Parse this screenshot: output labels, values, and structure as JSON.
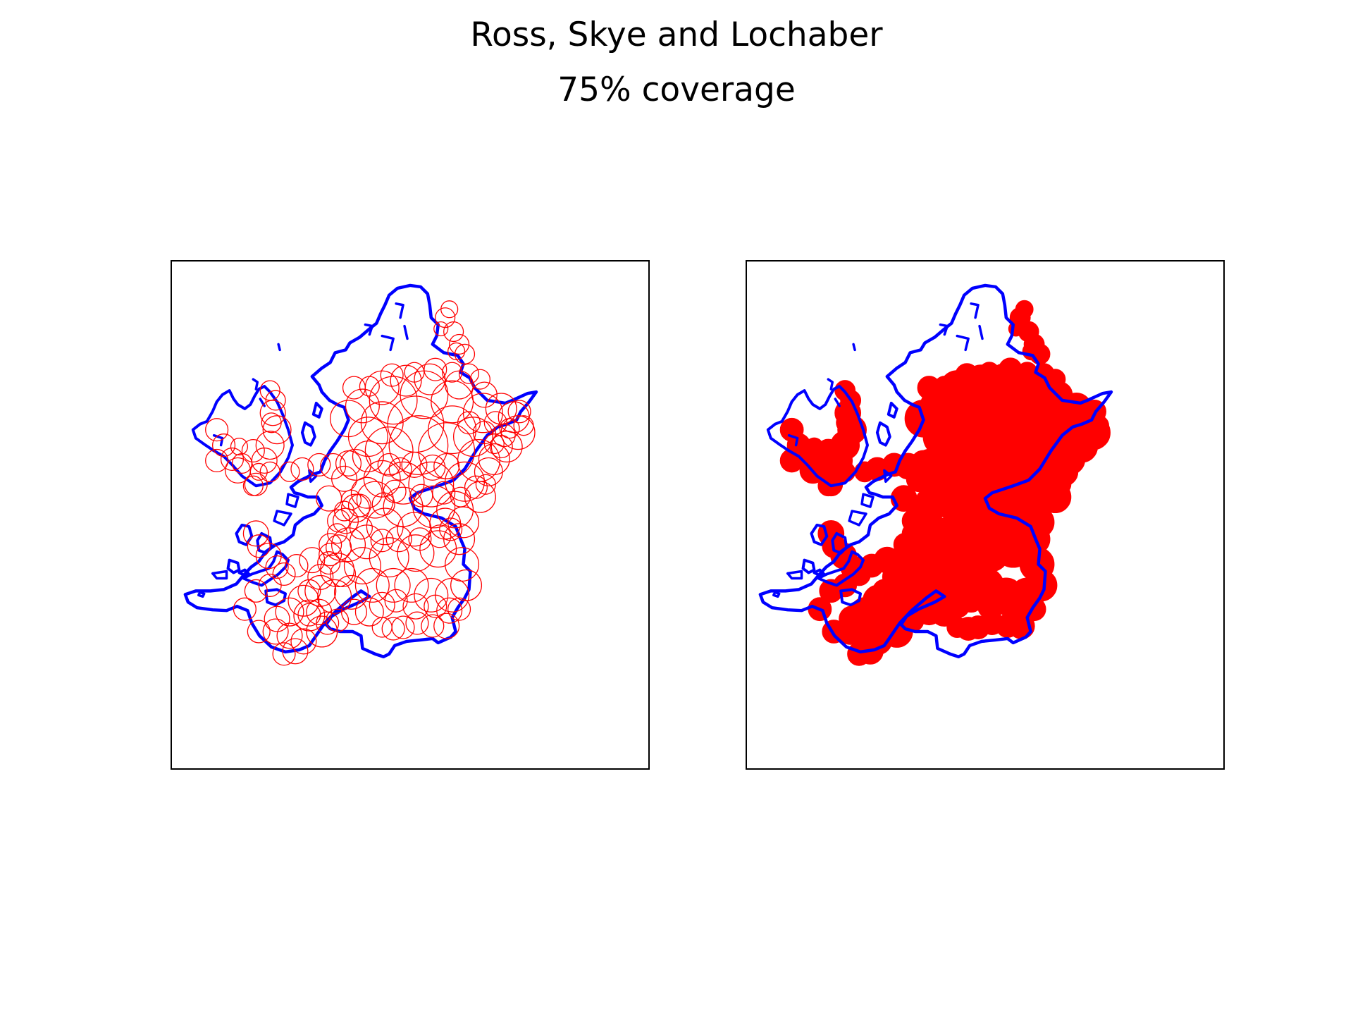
{
  "figure": {
    "title": "Ross, Skye and Lochaber",
    "subtitle": "75% coverage"
  },
  "panels": [
    {
      "style": "outline-circles"
    },
    {
      "style": "filled-circles"
    }
  ],
  "colors": {
    "boundary": "#0000ff",
    "coverage": "#ff0000",
    "frame": "#000000",
    "background": "#ffffff"
  }
}
